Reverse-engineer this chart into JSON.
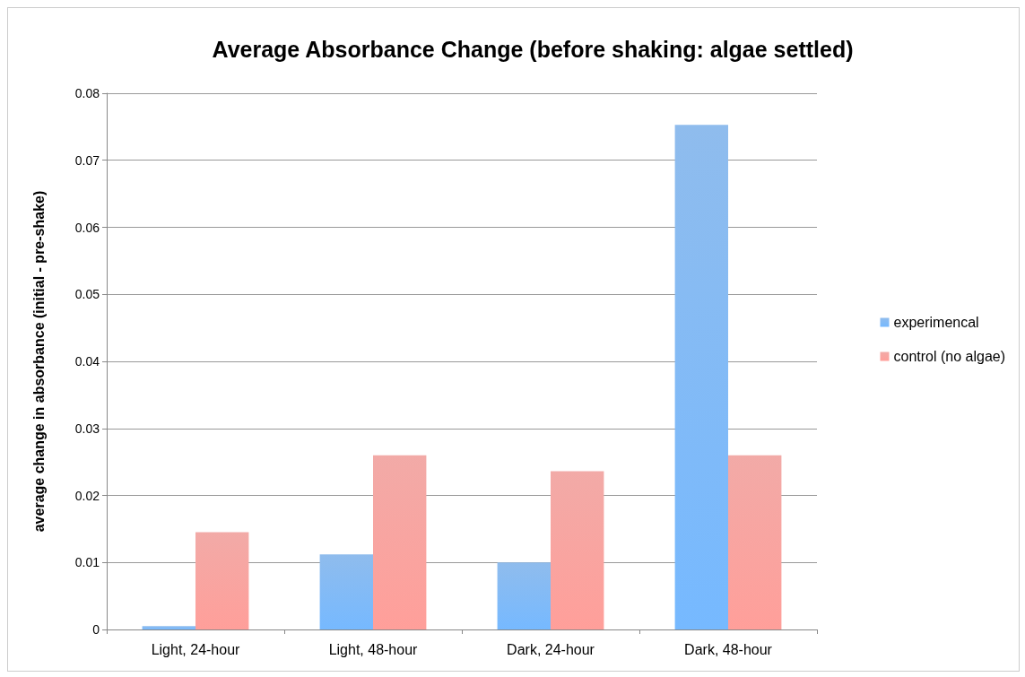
{
  "chart_data": {
    "type": "bar",
    "title": "Average Absorbance Change (before shaking: algae settled)",
    "ylabel": "average change in absorbance (initial - pre-shake)",
    "categories": [
      "Light, 24-hour",
      "Light, 48-hour",
      "Dark, 24-hour",
      "Dark, 48-hour"
    ],
    "series": [
      {
        "name": "experimencal",
        "color": "#6aa6e8",
        "values": [
          0.0005,
          0.0112,
          0.01,
          0.0753
        ]
      },
      {
        "name": "control (no algae)",
        "color": "#ee8e8a",
        "values": [
          0.0145,
          0.026,
          0.0236,
          0.026
        ]
      }
    ],
    "ylim": [
      0,
      0.08
    ],
    "yticks": [
      0,
      0.01,
      0.02,
      0.03,
      0.04,
      0.05,
      0.06,
      0.07,
      0.08
    ],
    "grid": "y",
    "legend": "right"
  }
}
